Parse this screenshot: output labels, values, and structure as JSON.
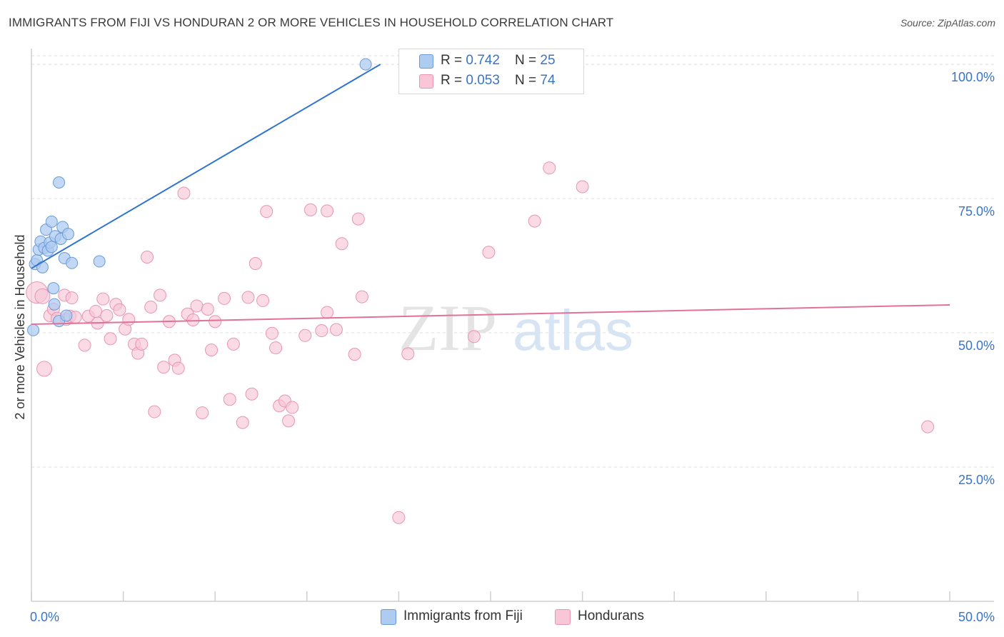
{
  "title": "IMMIGRANTS FROM FIJI VS HONDURAN 2 OR MORE VEHICLES IN HOUSEHOLD CORRELATION CHART",
  "source": "Source: ZipAtlas.com",
  "watermark": {
    "zip": "ZIP",
    "atlas": "atlas"
  },
  "legend": {
    "rows": [
      {
        "r_label": "R = ",
        "r_value": "0.742",
        "n_label": "N = ",
        "n_value": "25"
      },
      {
        "r_label": "R = ",
        "r_value": "0.053",
        "n_label": "N = ",
        "n_value": "74"
      }
    ]
  },
  "bottom_legend": {
    "fiji": "Immigrants from Fiji",
    "honduras": "Hondurans"
  },
  "colors": {
    "fiji_fill": "#aecbf0",
    "fiji_stroke": "#6a9bd8",
    "fiji_line": "#2e74d0",
    "hond_fill": "#f8c6d6",
    "hond_stroke": "#e995b2",
    "hond_line": "#e0729a",
    "tick_label": "#3a74c4",
    "grid": "#dcdcdc"
  },
  "chart_data": {
    "type": "scatter",
    "title": "IMMIGRANTS FROM FIJI VS HONDURAN 2 OR MORE VEHICLES IN HOUSEHOLD CORRELATION CHART",
    "xlabel": "",
    "ylabel": "2 or more Vehicles in Household",
    "xlim": [
      0,
      50
    ],
    "ylim": [
      0,
      104
    ],
    "x_tick_labels": [
      "0.0%",
      "50.0%"
    ],
    "y_ticks": [
      25,
      50,
      75,
      100
    ],
    "y_tick_labels": [
      "25.0%",
      "50.0%",
      "75.0%",
      "100.0%"
    ],
    "series": [
      {
        "name": "Immigrants from Fiji",
        "R": 0.742,
        "N": 25,
        "trend": {
          "x": [
            0.0,
            19.0
          ],
          "y": [
            62.0,
            100.0
          ]
        },
        "points": [
          {
            "x": 0.1,
            "y": 50.5
          },
          {
            "x": 0.2,
            "y": 62.8
          },
          {
            "x": 0.3,
            "y": 63.5
          },
          {
            "x": 0.4,
            "y": 65.5
          },
          {
            "x": 0.5,
            "y": 67.0
          },
          {
            "x": 0.6,
            "y": 62.2
          },
          {
            "x": 0.7,
            "y": 65.8
          },
          {
            "x": 0.8,
            "y": 69.2
          },
          {
            "x": 0.9,
            "y": 65.3
          },
          {
            "x": 1.0,
            "y": 66.8
          },
          {
            "x": 1.1,
            "y": 70.7
          },
          {
            "x": 1.1,
            "y": 66.0
          },
          {
            "x": 1.2,
            "y": 58.3
          },
          {
            "x": 1.25,
            "y": 55.3
          },
          {
            "x": 1.3,
            "y": 68.0
          },
          {
            "x": 1.5,
            "y": 78.0
          },
          {
            "x": 1.5,
            "y": 52.2
          },
          {
            "x": 1.6,
            "y": 67.5
          },
          {
            "x": 1.7,
            "y": 69.7
          },
          {
            "x": 1.8,
            "y": 63.9
          },
          {
            "x": 1.9,
            "y": 53.2
          },
          {
            "x": 2.0,
            "y": 68.4
          },
          {
            "x": 2.2,
            "y": 63.0
          },
          {
            "x": 3.7,
            "y": 63.3
          },
          {
            "x": 18.2,
            "y": 100.0
          }
        ]
      },
      {
        "name": "Hondurans",
        "R": 0.053,
        "N": 74,
        "trend": {
          "x": [
            0.0,
            50.0
          ],
          "y": [
            51.6,
            55.2
          ]
        },
        "points": [
          {
            "x": 0.3,
            "y": 57.5,
            "s": "xl"
          },
          {
            "x": 0.6,
            "y": 56.8,
            "s": "l"
          },
          {
            "x": 0.7,
            "y": 43.3,
            "s": "l"
          },
          {
            "x": 1.0,
            "y": 53.2
          },
          {
            "x": 1.2,
            "y": 54.4
          },
          {
            "x": 1.4,
            "y": 52.7
          },
          {
            "x": 1.8,
            "y": 57.0
          },
          {
            "x": 1.9,
            "y": 52.5
          },
          {
            "x": 2.1,
            "y": 53.1
          },
          {
            "x": 2.2,
            "y": 56.5
          },
          {
            "x": 2.4,
            "y": 52.9
          },
          {
            "x": 2.9,
            "y": 47.7
          },
          {
            "x": 3.1,
            "y": 53.1
          },
          {
            "x": 3.5,
            "y": 54.0
          },
          {
            "x": 3.6,
            "y": 51.8
          },
          {
            "x": 3.9,
            "y": 56.3
          },
          {
            "x": 4.1,
            "y": 53.2
          },
          {
            "x": 4.3,
            "y": 48.9
          },
          {
            "x": 4.6,
            "y": 55.3
          },
          {
            "x": 4.8,
            "y": 54.3
          },
          {
            "x": 5.1,
            "y": 50.7
          },
          {
            "x": 5.3,
            "y": 52.5
          },
          {
            "x": 5.6,
            "y": 47.9
          },
          {
            "x": 5.8,
            "y": 46.2
          },
          {
            "x": 6.0,
            "y": 47.9
          },
          {
            "x": 6.3,
            "y": 64.1
          },
          {
            "x": 6.5,
            "y": 54.8
          },
          {
            "x": 6.7,
            "y": 35.3
          },
          {
            "x": 7.0,
            "y": 57.0
          },
          {
            "x": 7.2,
            "y": 43.6
          },
          {
            "x": 7.5,
            "y": 52.1
          },
          {
            "x": 7.8,
            "y": 44.9
          },
          {
            "x": 8.0,
            "y": 43.4
          },
          {
            "x": 8.3,
            "y": 76.0
          },
          {
            "x": 8.5,
            "y": 53.5
          },
          {
            "x": 8.8,
            "y": 52.4
          },
          {
            "x": 9.0,
            "y": 55.0
          },
          {
            "x": 9.3,
            "y": 35.1
          },
          {
            "x": 9.6,
            "y": 54.4
          },
          {
            "x": 9.8,
            "y": 46.8
          },
          {
            "x": 10.0,
            "y": 52.1
          },
          {
            "x": 10.5,
            "y": 56.4
          },
          {
            "x": 10.8,
            "y": 37.6
          },
          {
            "x": 11.0,
            "y": 47.9
          },
          {
            "x": 11.5,
            "y": 33.3
          },
          {
            "x": 11.8,
            "y": 56.6
          },
          {
            "x": 12.0,
            "y": 38.6
          },
          {
            "x": 12.2,
            "y": 62.9
          },
          {
            "x": 12.6,
            "y": 56.0
          },
          {
            "x": 12.8,
            "y": 72.6
          },
          {
            "x": 13.1,
            "y": 49.9
          },
          {
            "x": 13.3,
            "y": 47.2
          },
          {
            "x": 13.5,
            "y": 36.4
          },
          {
            "x": 13.8,
            "y": 37.3
          },
          {
            "x": 14.0,
            "y": 33.6
          },
          {
            "x": 14.2,
            "y": 36.1
          },
          {
            "x": 14.9,
            "y": 49.5
          },
          {
            "x": 15.2,
            "y": 72.9
          },
          {
            "x": 15.8,
            "y": 50.4
          },
          {
            "x": 16.1,
            "y": 72.7
          },
          {
            "x": 16.1,
            "y": 53.8
          },
          {
            "x": 16.6,
            "y": 50.6
          },
          {
            "x": 16.9,
            "y": 66.6
          },
          {
            "x": 17.6,
            "y": 46.0
          },
          {
            "x": 17.8,
            "y": 71.2
          },
          {
            "x": 18.0,
            "y": 56.7
          },
          {
            "x": 20.0,
            "y": 15.6
          },
          {
            "x": 20.5,
            "y": 46.1
          },
          {
            "x": 24.1,
            "y": 49.3
          },
          {
            "x": 24.9,
            "y": 65.0
          },
          {
            "x": 27.4,
            "y": 70.8
          },
          {
            "x": 28.2,
            "y": 80.7
          },
          {
            "x": 30.0,
            "y": 77.2
          },
          {
            "x": 48.8,
            "y": 32.5
          }
        ]
      }
    ],
    "legend_position": "top-center"
  }
}
